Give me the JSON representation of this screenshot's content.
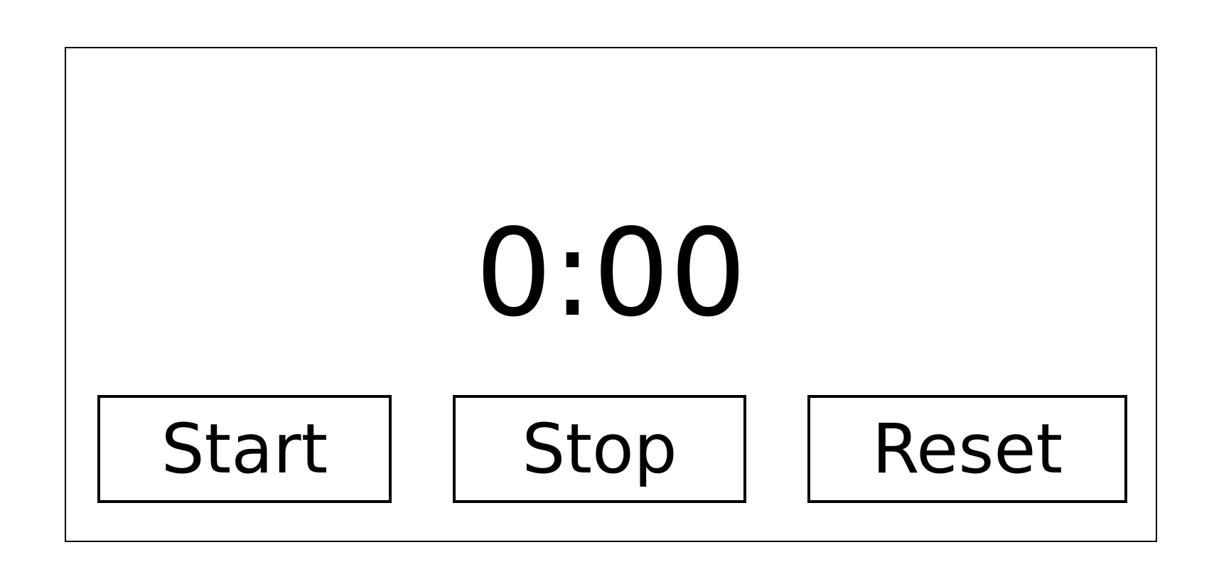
{
  "timer": {
    "display": "0:00"
  },
  "controls": {
    "start_label": "Start",
    "stop_label": "Stop",
    "reset_label": "Reset"
  }
}
